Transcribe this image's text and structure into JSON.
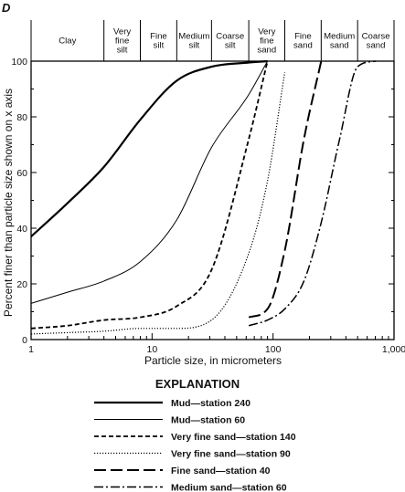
{
  "chart_data": {
    "type": "line",
    "panel_label": "D",
    "xlabel": "Particle size, in micrometers",
    "ylabel": "Percent finer than particle size shown on x axis",
    "x_scale": "log",
    "xlim": [
      1,
      1000
    ],
    "ylim": [
      0,
      100
    ],
    "x_ticks": [
      1,
      10,
      100,
      1000
    ],
    "x_tick_labels": [
      "1",
      "10",
      "100",
      "1,000"
    ],
    "y_ticks": [
      0,
      20,
      40,
      60,
      80,
      100
    ],
    "y_tick_labels": [
      "0",
      "20",
      "40",
      "60",
      "80",
      "100"
    ],
    "size_classes": [
      {
        "lines": [
          "Clay"
        ],
        "from": 1,
        "to": 4
      },
      {
        "lines": [
          "Very",
          "fine",
          "silt"
        ],
        "from": 4,
        "to": 8
      },
      {
        "lines": [
          "Fine",
          "silt"
        ],
        "from": 8,
        "to": 16
      },
      {
        "lines": [
          "Medium",
          "silt"
        ],
        "from": 16,
        "to": 31
      },
      {
        "lines": [
          "Coarse",
          "silt"
        ],
        "from": 31,
        "to": 63
      },
      {
        "lines": [
          "Very",
          "fine",
          "sand"
        ],
        "from": 63,
        "to": 125
      },
      {
        "lines": [
          "Fine",
          "sand"
        ],
        "from": 125,
        "to": 250
      },
      {
        "lines": [
          "Medium",
          "sand"
        ],
        "from": 250,
        "to": 500
      },
      {
        "lines": [
          "Coarse",
          "sand"
        ],
        "from": 500,
        "to": 1000
      }
    ],
    "legend_title": "EXPLANATION",
    "legend_position": "bottom",
    "series": [
      {
        "name": "Mud—station 240",
        "style": "solid-thick",
        "x": [
          1,
          2,
          4,
          8,
          16,
          31,
          63,
          90
        ],
        "y": [
          37,
          49,
          62,
          79,
          93,
          98,
          99.5,
          100
        ]
      },
      {
        "name": "Mud—station 60",
        "style": "solid-thin",
        "x": [
          1,
          2,
          4,
          8,
          16,
          31,
          63,
          90
        ],
        "y": [
          13,
          17,
          21,
          28,
          43,
          69,
          88,
          100
        ]
      },
      {
        "name": "Very fine sand—station 140",
        "style": "dashed",
        "x": [
          1,
          2,
          4,
          8,
          16,
          31,
          63,
          90
        ],
        "y": [
          4,
          5,
          7,
          8,
          12,
          25,
          72,
          100
        ]
      },
      {
        "name": "Very fine sand—station 90",
        "style": "dotted",
        "x": [
          1,
          2,
          4,
          8,
          16,
          31,
          63,
          90,
          125
        ],
        "y": [
          2,
          2.5,
          3,
          4,
          4,
          7,
          31,
          57,
          96
        ]
      },
      {
        "name": "Fine sand—station 40",
        "style": "long-dashed",
        "x": [
          63,
          90,
          125,
          180,
          250
        ],
        "y": [
          8,
          11,
          32,
          72,
          100
        ]
      },
      {
        "name": "Medium sand—station 60",
        "style": "dash-dot",
        "x": [
          63,
          90,
          125,
          180,
          250,
          355,
          500,
          710
        ],
        "y": [
          5,
          7,
          11,
          21,
          42,
          72,
          98,
          100
        ]
      }
    ]
  }
}
